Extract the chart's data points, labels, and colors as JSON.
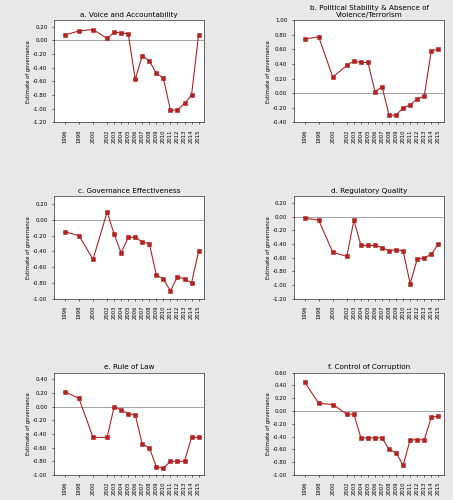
{
  "years": [
    1996,
    1998,
    2000,
    2002,
    2003,
    2004,
    2005,
    2006,
    2007,
    2008,
    2009,
    2010,
    2011,
    2012,
    2013,
    2014,
    2015
  ],
  "panels": [
    {
      "key": "a",
      "title": "a. Voice and Accountability",
      "values": [
        0.08,
        0.14,
        0.16,
        0.03,
        0.12,
        0.11,
        0.1,
        -0.57,
        -0.22,
        -0.3,
        -0.48,
        -0.55,
        -1.02,
        -1.02,
        -0.92,
        -0.8,
        0.08
      ],
      "ylim": [
        -1.2,
        0.3
      ],
      "yticks": [
        -1.2,
        -1.0,
        -0.8,
        -0.6,
        -0.4,
        -0.2,
        0.0,
        0.2
      ]
    },
    {
      "key": "b",
      "title": "b. Political Stability & Absence of\nViolence/Terrorism",
      "values": [
        0.74,
        0.77,
        0.22,
        0.38,
        0.44,
        0.42,
        0.42,
        0.02,
        0.09,
        -0.3,
        -0.3,
        -0.2,
        -0.16,
        -0.08,
        -0.04,
        0.58,
        0.6
      ],
      "ylim": [
        -0.4,
        1.0
      ],
      "yticks": [
        -0.4,
        -0.2,
        0.0,
        0.2,
        0.4,
        0.6,
        0.8,
        1.0
      ]
    },
    {
      "key": "c",
      "title": "c. Governance Effectiveness",
      "values": [
        -0.15,
        -0.2,
        -0.5,
        0.1,
        -0.18,
        -0.42,
        -0.22,
        -0.22,
        -0.28,
        -0.3,
        -0.7,
        -0.75,
        -0.9,
        -0.72,
        -0.75,
        -0.8,
        -0.4
      ],
      "ylim": [
        -1.0,
        0.3
      ],
      "yticks": [
        -1.0,
        -0.8,
        -0.6,
        -0.4,
        -0.2,
        0.0,
        0.2
      ]
    },
    {
      "key": "d",
      "title": "d. Regulatory Quality",
      "values": [
        -0.02,
        -0.05,
        -0.52,
        -0.58,
        -0.05,
        -0.42,
        -0.42,
        -0.42,
        -0.45,
        -0.5,
        -0.48,
        -0.5,
        -0.98,
        -0.62,
        -0.6,
        -0.55,
        -0.4
      ],
      "ylim": [
        -1.2,
        0.3
      ],
      "yticks": [
        -1.2,
        -1.0,
        -0.8,
        -0.6,
        -0.4,
        -0.2,
        0.0,
        0.2
      ]
    },
    {
      "key": "e",
      "title": "e. Rule of Law",
      "values": [
        0.22,
        0.12,
        -0.45,
        -0.45,
        0.0,
        -0.05,
        -0.1,
        -0.12,
        -0.55,
        -0.6,
        -0.88,
        -0.9,
        -0.8,
        -0.8,
        -0.8,
        -0.45,
        -0.45
      ],
      "ylim": [
        -1.0,
        0.5
      ],
      "yticks": [
        -1.0,
        -0.8,
        -0.6,
        -0.4,
        -0.2,
        0.0,
        0.2,
        0.4
      ]
    },
    {
      "key": "f",
      "title": "f. Control of Corruption",
      "values": [
        0.45,
        0.12,
        0.1,
        -0.05,
        -0.05,
        -0.42,
        -0.42,
        -0.42,
        -0.42,
        -0.6,
        -0.65,
        -0.85,
        -0.45,
        -0.45,
        -0.45,
        -0.1,
        -0.08
      ],
      "ylim": [
        -1.0,
        0.6
      ],
      "yticks": [
        -1.0,
        -0.8,
        -0.6,
        -0.4,
        -0.2,
        0.0,
        0.2,
        0.4,
        0.6
      ]
    }
  ],
  "line_color": "#B22222",
  "marker_color": "#B22222",
  "ylabel": "Estimate of governance",
  "background_color": "#e8e8e8",
  "plot_bg": "#ffffff"
}
